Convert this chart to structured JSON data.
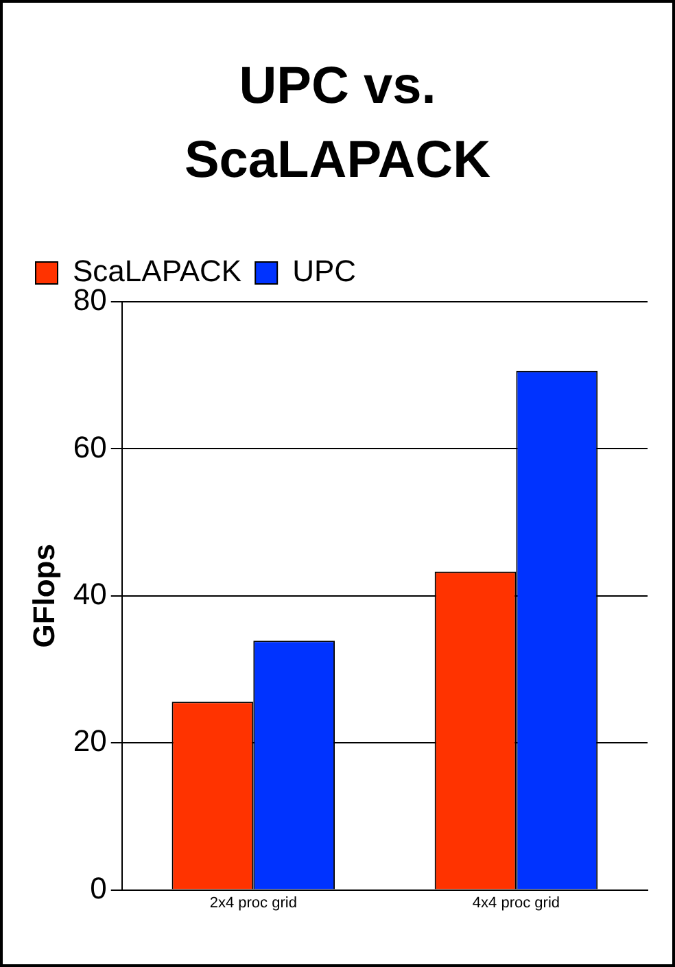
{
  "chart_data": {
    "type": "bar",
    "title": "UPC vs. ScaLAPACK",
    "ylabel": "GFlops",
    "categories": [
      "2x4 proc grid",
      "4x4 proc grid"
    ],
    "series": [
      {
        "name": "ScaLAPACK",
        "color": "#ff3300",
        "values": [
          25.6,
          43.3
        ]
      },
      {
        "name": "UPC",
        "color": "#0033ff",
        "values": [
          33.9,
          70.6
        ]
      }
    ],
    "ylim": [
      0,
      80
    ],
    "yticks": [
      0,
      20,
      40,
      60,
      80
    ],
    "grid": "y",
    "legend": "top left"
  }
}
